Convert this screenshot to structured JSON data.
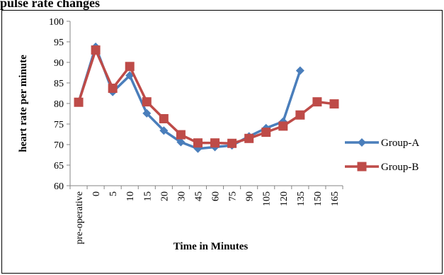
{
  "page_title": "pulse rate changes",
  "chart_data": {
    "type": "line",
    "title": "",
    "xlabel": "Time in Minutes",
    "ylabel": "heart rate per minute",
    "categories": [
      "pre-operative",
      "0",
      "5",
      "10",
      "15",
      "20",
      "30",
      "45",
      "60",
      "75",
      "90",
      "105",
      "120",
      "135",
      "150",
      "165"
    ],
    "ylim": [
      60,
      100
    ],
    "yticks": [
      60,
      65,
      70,
      75,
      80,
      85,
      90,
      95,
      100
    ],
    "grid": false,
    "legend_position": "right",
    "series": [
      {
        "name": "Group-A",
        "color": "#4a7ebb",
        "marker": "diamond",
        "values": [
          80.3,
          93.8,
          82.8,
          86.8,
          77.6,
          73.4,
          70.6,
          69.0,
          69.4,
          69.8,
          72.0,
          74.0,
          75.6,
          88.0,
          null,
          null
        ]
      },
      {
        "name": "Group-B",
        "color": "#be4b48",
        "marker": "square",
        "values": [
          80.3,
          93.0,
          83.7,
          89.0,
          80.4,
          76.3,
          72.4,
          70.4,
          70.4,
          70.3,
          71.5,
          73.0,
          74.5,
          77.2,
          80.4,
          79.9
        ]
      }
    ]
  }
}
